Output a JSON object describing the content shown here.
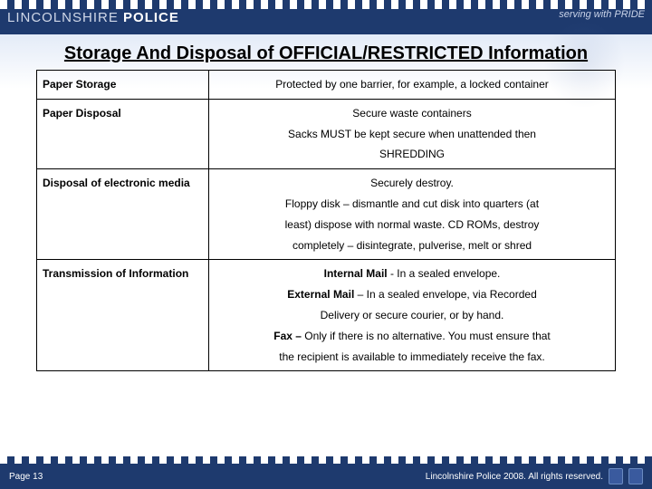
{
  "header": {
    "org_thin": "LINCOLNSHIRE",
    "org_bold": " POLICE",
    "tagline": "serving with PRIDE"
  },
  "title": "Storage And Disposal of OFFICIAL/RESTRICTED Information",
  "rows": [
    {
      "label": "Paper Storage",
      "content_html": "Protected by one barrier, for example, a locked container"
    },
    {
      "label": "Paper Disposal",
      "content_html": "Secure waste containers<br>Sacks MUST be kept secure when unattended then<br>SHREDDING"
    },
    {
      "label": "Disposal of electronic media",
      "content_html": "Securely destroy.<br>Floppy disk – dismantle and cut disk into quarters (at<br>least) dispose with normal waste. CD ROMs, destroy<br>completely – disintegrate, pulverise, melt or shred"
    },
    {
      "label": "Transmission of Information",
      "content_html": "<b>Internal Mail</b> - In a sealed envelope.<br><b>External Mail</b> – In a sealed envelope, via Recorded<br>Delivery or secure courier, or by hand.<br><b>Fax –</b> Only if there is no alternative. You must ensure that<br>the recipient is available to immediately receive the fax."
    }
  ],
  "footer": {
    "page": "Page 13",
    "copyright": "Lincolnshire Police 2008. All rights reserved."
  },
  "colors": {
    "brand_blue": "#1e3a6e",
    "text": "#000000",
    "bg": "#ffffff"
  }
}
